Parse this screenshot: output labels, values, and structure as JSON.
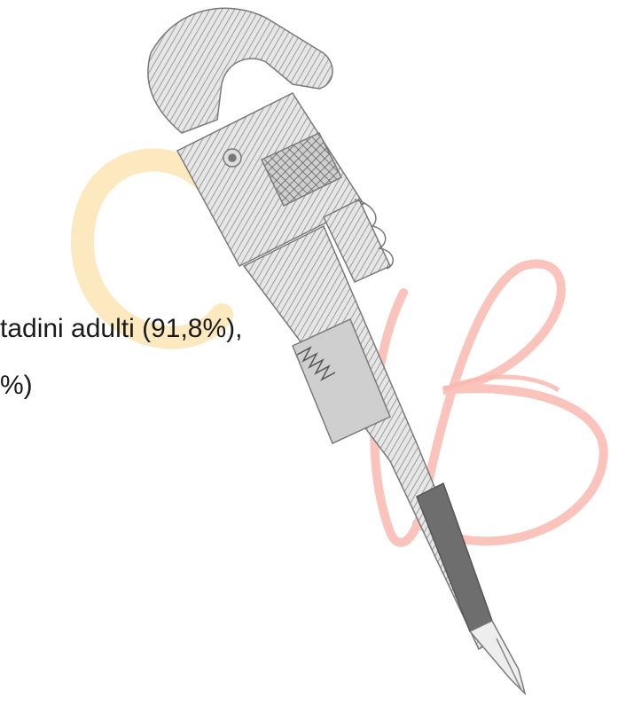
{
  "text": {
    "lines": [
      "tadini adulti (91,8%),",
      "%)"
    ]
  }
}
